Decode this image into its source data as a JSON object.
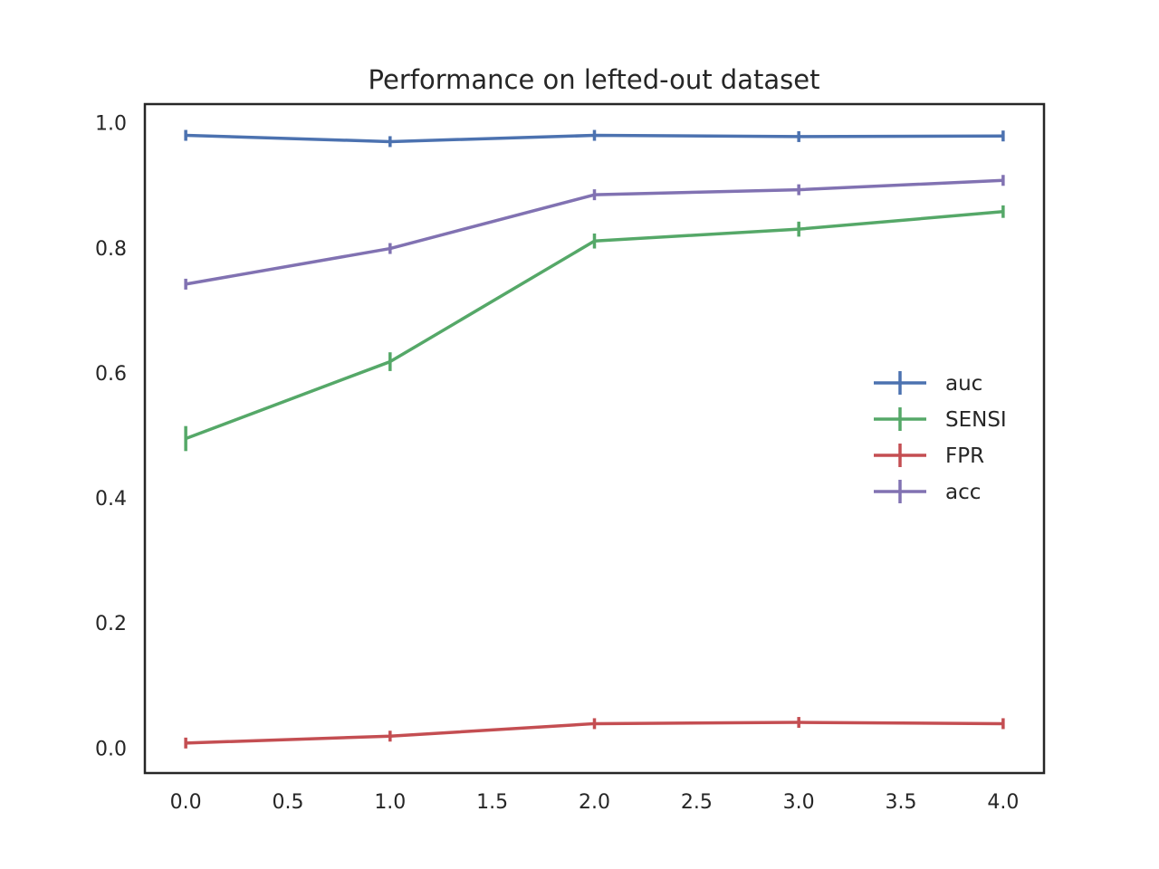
{
  "chart_data": {
    "type": "line",
    "title": "Performance on lefted-out dataset",
    "xlabel": "",
    "ylabel": "",
    "x": [
      0,
      1,
      2,
      3,
      4
    ],
    "xlim": [
      -0.2,
      4.2
    ],
    "ylim": [
      -0.04,
      1.03
    ],
    "xticks": [
      0.0,
      0.5,
      1.0,
      1.5,
      2.0,
      2.5,
      3.0,
      3.5,
      4.0
    ],
    "xtick_labels": [
      "0.0",
      "0.5",
      "1.0",
      "1.5",
      "2.0",
      "2.5",
      "3.0",
      "3.5",
      "4.0"
    ],
    "yticks": [
      0.0,
      0.2,
      0.4,
      0.6,
      0.8,
      1.0
    ],
    "ytick_labels": [
      "0.0",
      "0.2",
      "0.4",
      "0.6",
      "0.8",
      "1.0"
    ],
    "grid": false,
    "legend_position": "center-right",
    "series": [
      {
        "name": "auc",
        "color": "#4c72b0",
        "values": [
          0.98,
          0.97,
          0.98,
          0.978,
          0.979
        ],
        "errors": [
          0.002,
          0.003,
          0.002,
          0.002,
          0.002
        ]
      },
      {
        "name": "SENSI",
        "color": "#55a868",
        "values": [
          0.495,
          0.618,
          0.811,
          0.83,
          0.858
        ],
        "errors": [
          0.02,
          0.015,
          0.012,
          0.012,
          0.01
        ]
      },
      {
        "name": "FPR",
        "color": "#c44e52",
        "values": [
          0.008,
          0.019,
          0.039,
          0.041,
          0.039
        ],
        "errors": [
          0.002,
          0.002,
          0.002,
          0.002,
          0.002
        ]
      },
      {
        "name": "acc",
        "color": "#8172b2",
        "values": [
          0.742,
          0.799,
          0.885,
          0.893,
          0.908
        ],
        "errors": [
          0.008,
          0.007,
          0.006,
          0.006,
          0.006
        ]
      }
    ]
  }
}
